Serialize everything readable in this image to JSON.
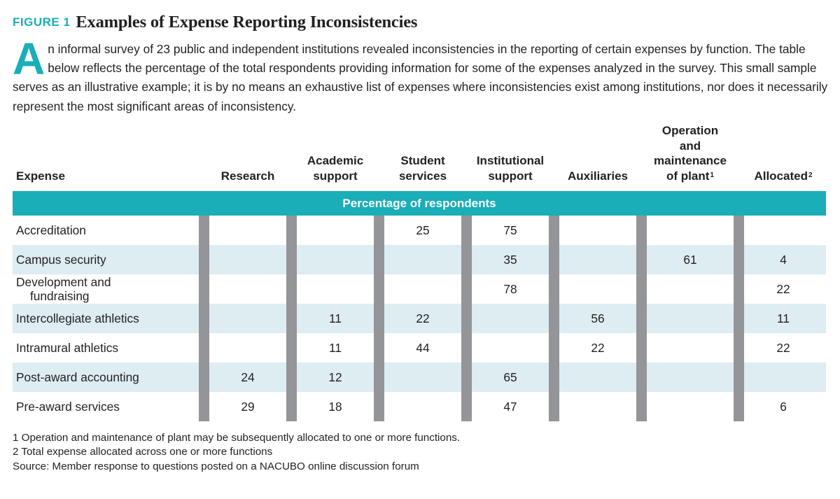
{
  "figure": {
    "label": "FIGURE 1",
    "title": "Examples of Expense Reporting Inconsistencies"
  },
  "intro": {
    "dropcap": "A",
    "text": "n informal survey of 23 public and independent institutions revealed inconsistencies in the reporting of certain expenses by function. The table below reflects the percentage of the total respondents providing information for some of the expenses analyzed in the survey. This small sample serves as an illustrative example; it is by no means an exhaustive list of expenses where inconsistencies exist among institutions, nor does it necessarily represent the most significant areas of inconsistency."
  },
  "table": {
    "headers": [
      {
        "key": "expense",
        "lines": [
          "Expense"
        ]
      },
      {
        "key": "research",
        "lines": [
          "Research"
        ]
      },
      {
        "key": "academic",
        "lines": [
          "Academic",
          "support"
        ]
      },
      {
        "key": "student",
        "lines": [
          "Student",
          "services"
        ]
      },
      {
        "key": "institutional",
        "lines": [
          "Institutional",
          "support"
        ]
      },
      {
        "key": "auxiliaries",
        "lines": [
          "Auxiliaries"
        ]
      },
      {
        "key": "operation",
        "lines": [
          "Operation",
          "and",
          "maintenance",
          "of plant"
        ],
        "sup": "1"
      },
      {
        "key": "allocated",
        "lines": [
          "Allocated"
        ],
        "sup": "2"
      }
    ],
    "band_label": "Percentage of respondents",
    "colors": {
      "band": "#19aeb8",
      "shade": "#ddedf2",
      "divider": "#939598",
      "accent": "#19aeb8"
    },
    "rows": [
      {
        "label": [
          "Accreditation"
        ],
        "values": [
          "",
          "",
          "25",
          "75",
          "",
          "",
          ""
        ]
      },
      {
        "label": [
          "Campus security"
        ],
        "values": [
          "",
          "",
          "",
          "35",
          "",
          "61",
          "4"
        ]
      },
      {
        "label": [
          "Development and",
          "fundraising"
        ],
        "values": [
          "",
          "",
          "",
          "78",
          "",
          "",
          "22"
        ]
      },
      {
        "label": [
          "Intercollegiate athletics"
        ],
        "values": [
          "",
          "11",
          "22",
          "",
          "56",
          "",
          "11"
        ]
      },
      {
        "label": [
          "Intramural athletics"
        ],
        "values": [
          "",
          "11",
          "44",
          "",
          "22",
          "",
          "22"
        ]
      },
      {
        "label": [
          "Post-award accounting"
        ],
        "values": [
          "24",
          "12",
          "",
          "65",
          "",
          "",
          ""
        ]
      },
      {
        "label": [
          "Pre-award services"
        ],
        "values": [
          "29",
          "18",
          "",
          "47",
          "",
          "",
          "6"
        ]
      }
    ]
  },
  "notes": [
    "1  Operation and maintenance of plant may be subsequently allocated to one or more functions.",
    "2  Total expense allocated across one or more functions",
    "Source: Member response to questions posted on a NACUBO online discussion forum"
  ]
}
